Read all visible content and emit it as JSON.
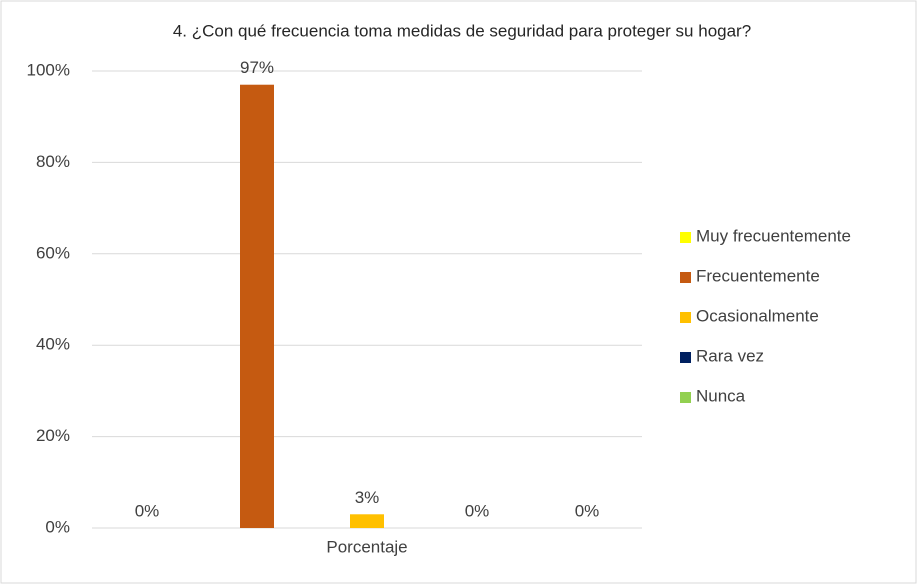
{
  "chart_data": {
    "type": "bar",
    "title": "4. ¿Con qué frecuencia toma medidas de seguridad para proteger su hogar?",
    "categories": [
      "Porcentaje"
    ],
    "series": [
      {
        "name": "Muy frecuentemente",
        "color": "#ffff00",
        "values": [
          0
        ],
        "value_labels": [
          "0%"
        ]
      },
      {
        "name": "Frecuentemente",
        "color": "#c55a11",
        "values": [
          97
        ],
        "value_labels": [
          "97%"
        ]
      },
      {
        "name": "Ocasionalmente",
        "color": "#ffc000",
        "values": [
          3
        ],
        "value_labels": [
          "3%"
        ]
      },
      {
        "name": "Rara vez",
        "color": "#002060",
        "values": [
          0
        ],
        "value_labels": [
          "0%"
        ]
      },
      {
        "name": "Nunca",
        "color": "#92d050",
        "values": [
          0
        ],
        "value_labels": [
          "0%"
        ]
      }
    ],
    "ylim": [
      0,
      100
    ],
    "yticks": [
      {
        "value": 0,
        "label": "0%"
      },
      {
        "value": 20,
        "label": "20%"
      },
      {
        "value": 40,
        "label": "40%"
      },
      {
        "value": 60,
        "label": "60%"
      },
      {
        "value": 80,
        "label": "80%"
      },
      {
        "value": 100,
        "label": "100%"
      }
    ],
    "grid": true,
    "legend": "right"
  }
}
